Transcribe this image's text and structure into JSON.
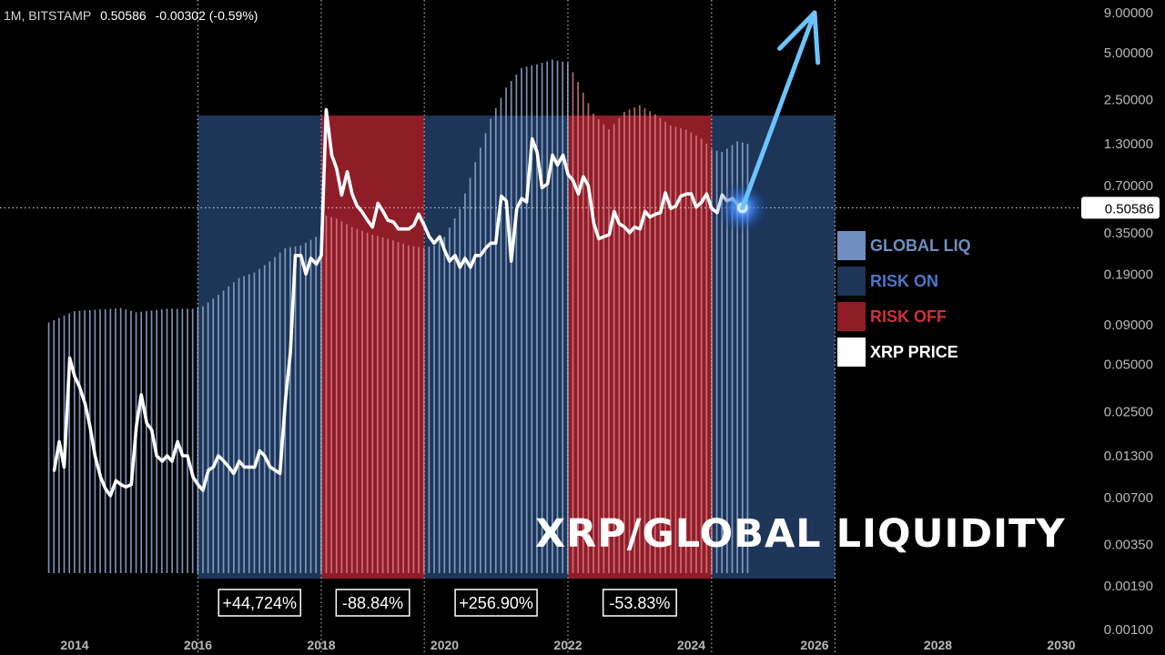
{
  "header": {
    "interval_exchange": "1M, BITSTAMP",
    "price": "0.50586",
    "change": "-0.00302 (-0.59%)"
  },
  "title": "XRP/GLOBAL LIQUIDITY",
  "legend": [
    {
      "label": "GLOBAL LIQ",
      "color": "#6e8fbf",
      "text_color": "#6e8fbf"
    },
    {
      "label": "RISK ON",
      "color": "#1d3557",
      "text_color": "#4a78c8"
    },
    {
      "label": "RISK OFF",
      "color": "#8e1d28",
      "text_color": "#d0303c"
    },
    {
      "label": "XRP PRICE",
      "color": "#ffffff",
      "text_color": "#ffffff"
    }
  ],
  "current_price_label": "0.50586",
  "chart_data": {
    "type": "line",
    "x_axis": {
      "ticks": [
        "2014",
        "2016",
        "2018",
        "2020",
        "2022",
        "2024",
        "2026",
        "2028",
        "2030"
      ],
      "range": [
        2013.0,
        2031.0
      ]
    },
    "y_axis": {
      "scale": "log",
      "ticks": [
        "0.00100",
        "0.00190",
        "0.00350",
        "0.00700",
        "0.01300",
        "0.02500",
        "0.05000",
        "0.09000",
        "0.19000",
        "0.35000",
        "0.70000",
        "1.30000",
        "2.50000",
        "5.00000",
        "9.00000"
      ],
      "range": [
        0.001,
        10.0
      ]
    },
    "regions": [
      {
        "type": "risk_on",
        "start": 2016.0,
        "end": 2018.0,
        "change": "+44,724%",
        "color": "#1d3557"
      },
      {
        "type": "risk_off",
        "start": 2018.0,
        "end": 2019.67,
        "change": "-88.84%",
        "color": "#8e1d28"
      },
      {
        "type": "risk_on",
        "start": 2019.67,
        "end": 2022.0,
        "change": "+256.90%",
        "color": "#1d3557"
      },
      {
        "type": "risk_off",
        "start": 2022.0,
        "end": 2024.33,
        "change": "-53.83%",
        "color": "#8e1d28"
      },
      {
        "type": "risk_on",
        "start": 2024.33,
        "end": 2026.33,
        "change": "",
        "color": "#1d3557"
      }
    ],
    "vertical_markers": [
      2016.0,
      2018.0,
      2019.67,
      2022.0,
      2024.33,
      2026.33
    ],
    "current_price": 0.50586,
    "series": [
      {
        "name": "XRP PRICE",
        "color": "#ffffff",
        "points": [
          [
            2013.67,
            0.0105
          ],
          [
            2013.75,
            0.016
          ],
          [
            2013.83,
            0.011
          ],
          [
            2013.92,
            0.055
          ],
          [
            2014.0,
            0.042
          ],
          [
            2014.08,
            0.036
          ],
          [
            2014.17,
            0.028
          ],
          [
            2014.25,
            0.02
          ],
          [
            2014.33,
            0.013
          ],
          [
            2014.42,
            0.0095
          ],
          [
            2014.5,
            0.008
          ],
          [
            2014.58,
            0.0072
          ],
          [
            2014.67,
            0.009
          ],
          [
            2014.75,
            0.0085
          ],
          [
            2014.83,
            0.0082
          ],
          [
            2014.92,
            0.0085
          ],
          [
            2015.0,
            0.02
          ],
          [
            2015.08,
            0.032
          ],
          [
            2015.17,
            0.021
          ],
          [
            2015.25,
            0.019
          ],
          [
            2015.33,
            0.013
          ],
          [
            2015.42,
            0.012
          ],
          [
            2015.5,
            0.013
          ],
          [
            2015.58,
            0.012
          ],
          [
            2015.67,
            0.016
          ],
          [
            2015.75,
            0.013
          ],
          [
            2015.83,
            0.013
          ],
          [
            2015.92,
            0.0095
          ],
          [
            2016.0,
            0.0085
          ],
          [
            2016.08,
            0.0078
          ],
          [
            2016.17,
            0.0105
          ],
          [
            2016.25,
            0.011
          ],
          [
            2016.33,
            0.013
          ],
          [
            2016.42,
            0.012
          ],
          [
            2016.5,
            0.011
          ],
          [
            2016.58,
            0.01
          ],
          [
            2016.67,
            0.012
          ],
          [
            2016.75,
            0.011
          ],
          [
            2016.83,
            0.011
          ],
          [
            2016.92,
            0.011
          ],
          [
            2017.0,
            0.014
          ],
          [
            2017.08,
            0.013
          ],
          [
            2017.17,
            0.011
          ],
          [
            2017.25,
            0.0105
          ],
          [
            2017.33,
            0.01
          ],
          [
            2017.42,
            0.03
          ],
          [
            2017.5,
            0.06
          ],
          [
            2017.58,
            0.25
          ],
          [
            2017.67,
            0.25
          ],
          [
            2017.75,
            0.19
          ],
          [
            2017.83,
            0.24
          ],
          [
            2017.92,
            0.22
          ],
          [
            2018.0,
            0.25
          ],
          [
            2018.08,
            2.15
          ],
          [
            2018.17,
            1.1
          ],
          [
            2018.25,
            0.9
          ],
          [
            2018.33,
            0.61
          ],
          [
            2018.42,
            0.86
          ],
          [
            2018.5,
            0.62
          ],
          [
            2018.58,
            0.52
          ],
          [
            2018.67,
            0.47
          ],
          [
            2018.75,
            0.42
          ],
          [
            2018.83,
            0.38
          ],
          [
            2018.92,
            0.54
          ],
          [
            2019.0,
            0.48
          ],
          [
            2019.08,
            0.42
          ],
          [
            2019.17,
            0.41
          ],
          [
            2019.25,
            0.37
          ],
          [
            2019.33,
            0.37
          ],
          [
            2019.42,
            0.37
          ],
          [
            2019.5,
            0.39
          ],
          [
            2019.58,
            0.46
          ],
          [
            2019.67,
            0.39
          ],
          [
            2019.75,
            0.33
          ],
          [
            2019.83,
            0.3
          ],
          [
            2019.92,
            0.33
          ],
          [
            2020.0,
            0.27
          ],
          [
            2020.08,
            0.23
          ],
          [
            2020.17,
            0.25
          ],
          [
            2020.25,
            0.21
          ],
          [
            2020.33,
            0.24
          ],
          [
            2020.42,
            0.21
          ],
          [
            2020.5,
            0.25
          ],
          [
            2020.58,
            0.25
          ],
          [
            2020.67,
            0.28
          ],
          [
            2020.75,
            0.3
          ],
          [
            2020.83,
            0.3
          ],
          [
            2020.92,
            0.6
          ],
          [
            2021.0,
            0.56
          ],
          [
            2021.08,
            0.23
          ],
          [
            2021.17,
            0.5
          ],
          [
            2021.25,
            0.58
          ],
          [
            2021.33,
            0.55
          ],
          [
            2021.42,
            1.4
          ],
          [
            2021.5,
            1.15
          ],
          [
            2021.58,
            0.68
          ],
          [
            2021.67,
            0.72
          ],
          [
            2021.75,
            1.1
          ],
          [
            2021.83,
            0.95
          ],
          [
            2021.92,
            1.1
          ],
          [
            2022.0,
            0.83
          ],
          [
            2022.08,
            0.76
          ],
          [
            2022.17,
            0.62
          ],
          [
            2022.25,
            0.8
          ],
          [
            2022.33,
            0.7
          ],
          [
            2022.42,
            0.4
          ],
          [
            2022.5,
            0.32
          ],
          [
            2022.58,
            0.33
          ],
          [
            2022.67,
            0.34
          ],
          [
            2022.75,
            0.48
          ],
          [
            2022.83,
            0.4
          ],
          [
            2022.92,
            0.38
          ],
          [
            2023.0,
            0.35
          ],
          [
            2023.08,
            0.38
          ],
          [
            2023.17,
            0.37
          ],
          [
            2023.25,
            0.48
          ],
          [
            2023.33,
            0.44
          ],
          [
            2023.42,
            0.46
          ],
          [
            2023.5,
            0.47
          ],
          [
            2023.58,
            0.63
          ],
          [
            2023.67,
            0.5
          ],
          [
            2023.75,
            0.52
          ],
          [
            2023.83,
            0.6
          ],
          [
            2023.92,
            0.62
          ],
          [
            2024.0,
            0.62
          ],
          [
            2024.08,
            0.51
          ],
          [
            2024.17,
            0.55
          ],
          [
            2024.25,
            0.62
          ],
          [
            2024.33,
            0.5
          ],
          [
            2024.42,
            0.47
          ],
          [
            2024.5,
            0.61
          ],
          [
            2024.58,
            0.56
          ],
          [
            2024.67,
            0.58
          ],
          [
            2024.75,
            0.53
          ],
          [
            2024.83,
            0.50586
          ]
        ]
      },
      {
        "name": "GLOBAL LIQ",
        "color": "#6e8fbf",
        "base": 0.0023,
        "points": [
          [
            2013.58,
            0.093
          ],
          [
            2014.0,
            0.11
          ],
          [
            2014.75,
            0.115
          ],
          [
            2015.0,
            0.108
          ],
          [
            2015.5,
            0.114
          ],
          [
            2015.92,
            0.114
          ],
          [
            2016.08,
            0.118
          ],
          [
            2016.33,
            0.14
          ],
          [
            2016.67,
            0.18
          ],
          [
            2016.92,
            0.195
          ],
          [
            2017.17,
            0.23
          ],
          [
            2017.42,
            0.28
          ],
          [
            2017.67,
            0.29
          ],
          [
            2017.92,
            0.33
          ],
          [
            2018.08,
            0.45
          ],
          [
            2018.25,
            0.43
          ],
          [
            2018.5,
            0.38
          ],
          [
            2018.83,
            0.34
          ],
          [
            2019.08,
            0.32
          ],
          [
            2019.42,
            0.29
          ],
          [
            2019.67,
            0.28
          ],
          [
            2019.83,
            0.29
          ],
          [
            2020.0,
            0.33
          ],
          [
            2020.25,
            0.5
          ],
          [
            2020.5,
            1.0
          ],
          [
            2020.75,
            1.9
          ],
          [
            2021.0,
            3.0
          ],
          [
            2021.25,
            4.0
          ],
          [
            2021.5,
            4.2
          ],
          [
            2021.75,
            4.5
          ],
          [
            2022.0,
            4.3
          ],
          [
            2022.17,
            3.2
          ],
          [
            2022.42,
            2.0
          ],
          [
            2022.67,
            1.6
          ],
          [
            2022.92,
            2.1
          ],
          [
            2023.17,
            2.3
          ],
          [
            2023.42,
            2.0
          ],
          [
            2023.67,
            1.7
          ],
          [
            2023.92,
            1.6
          ],
          [
            2024.17,
            1.4
          ],
          [
            2024.33,
            1.2
          ],
          [
            2024.5,
            1.15
          ],
          [
            2024.75,
            1.35
          ],
          [
            2024.92,
            1.3
          ]
        ]
      }
    ],
    "projection": {
      "from": [
        2024.83,
        0.50586
      ],
      "to": [
        2026.0,
        9.0
      ]
    }
  }
}
